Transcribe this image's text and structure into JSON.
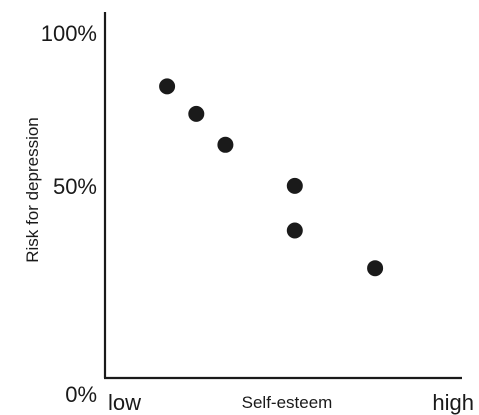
{
  "chart_data": {
    "type": "scatter",
    "title": "",
    "xlabel": "Self-esteem",
    "ylabel": "Risk for depression",
    "x_tick_labels": {
      "low": "low",
      "high": "high"
    },
    "y_tick_labels": [
      "0%",
      "50%",
      "100%"
    ],
    "y_tick_values": [
      0,
      50,
      100
    ],
    "xlim": [
      0,
      100
    ],
    "ylim": [
      0,
      100
    ],
    "grid": false,
    "points": [
      {
        "x": 17,
        "y": 85
      },
      {
        "x": 25,
        "y": 77
      },
      {
        "x": 33,
        "y": 68
      },
      {
        "x": 52,
        "y": 56
      },
      {
        "x": 52,
        "y": 43
      },
      {
        "x": 74,
        "y": 32
      }
    ],
    "marker_color": "#1a1a1a"
  }
}
